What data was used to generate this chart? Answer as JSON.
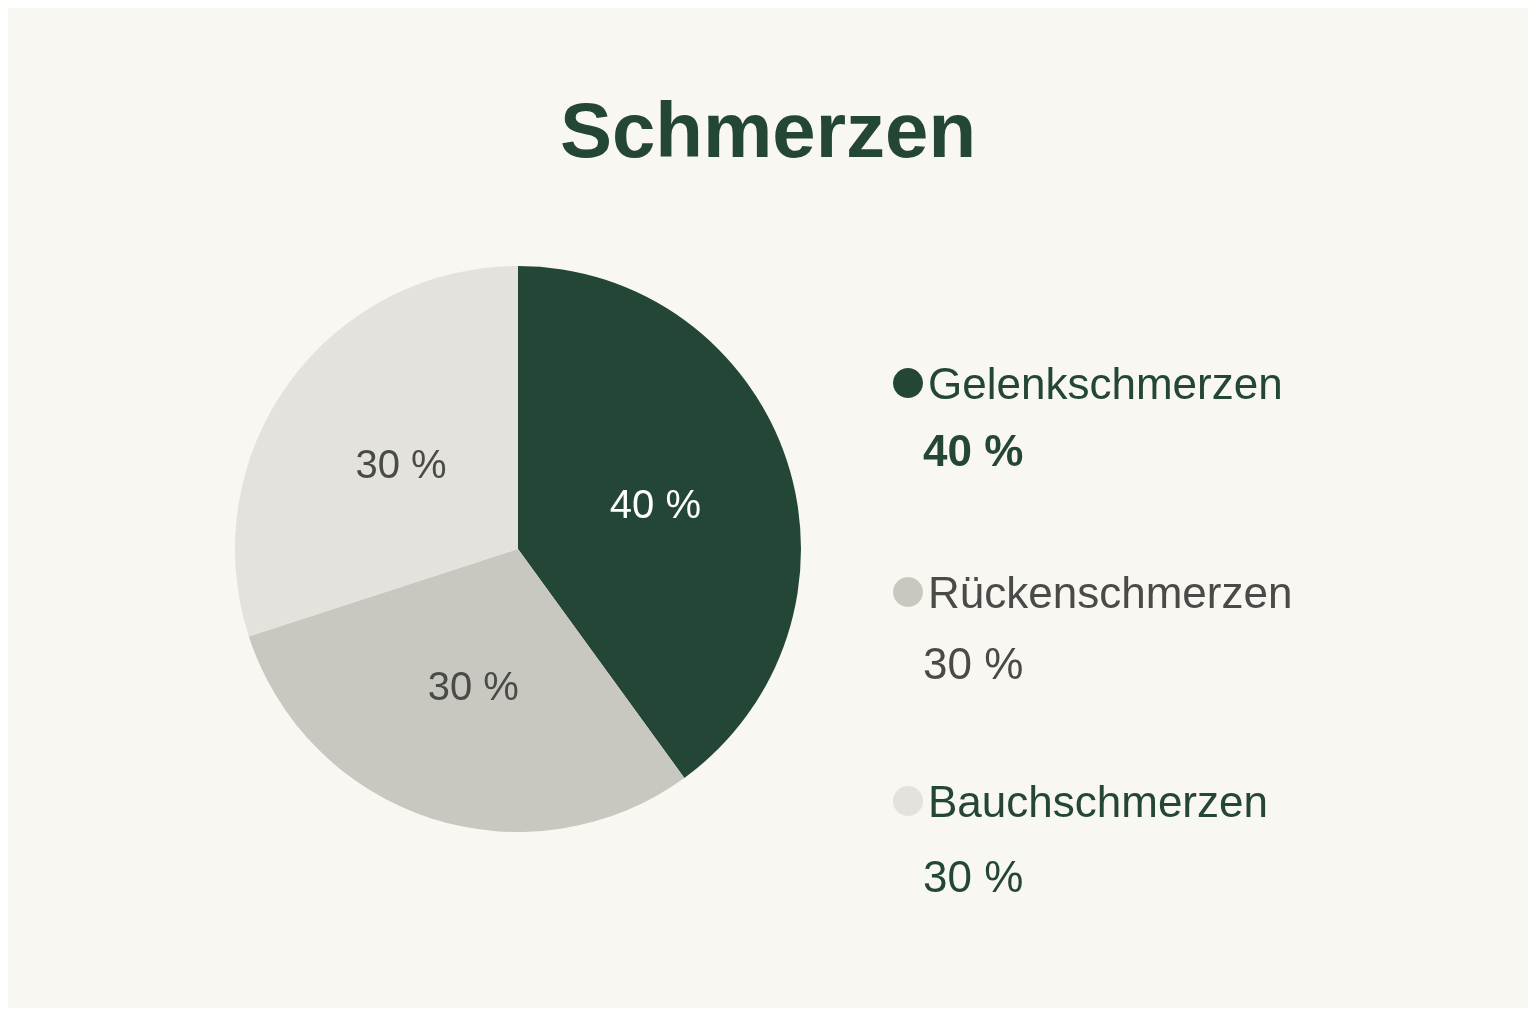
{
  "chart_data": {
    "type": "pie",
    "title": "Schmerzen",
    "categories": [
      "Gelenkschmerzen",
      "Rückenschmerzen",
      "Bauchschmerzen"
    ],
    "values": [
      40,
      30,
      30
    ],
    "colors": [
      "#244636",
      "#c8c8c1",
      "#e3e2dd"
    ],
    "value_labels": [
      "40 %",
      "30 %",
      "30 %"
    ],
    "legend": "right"
  }
}
